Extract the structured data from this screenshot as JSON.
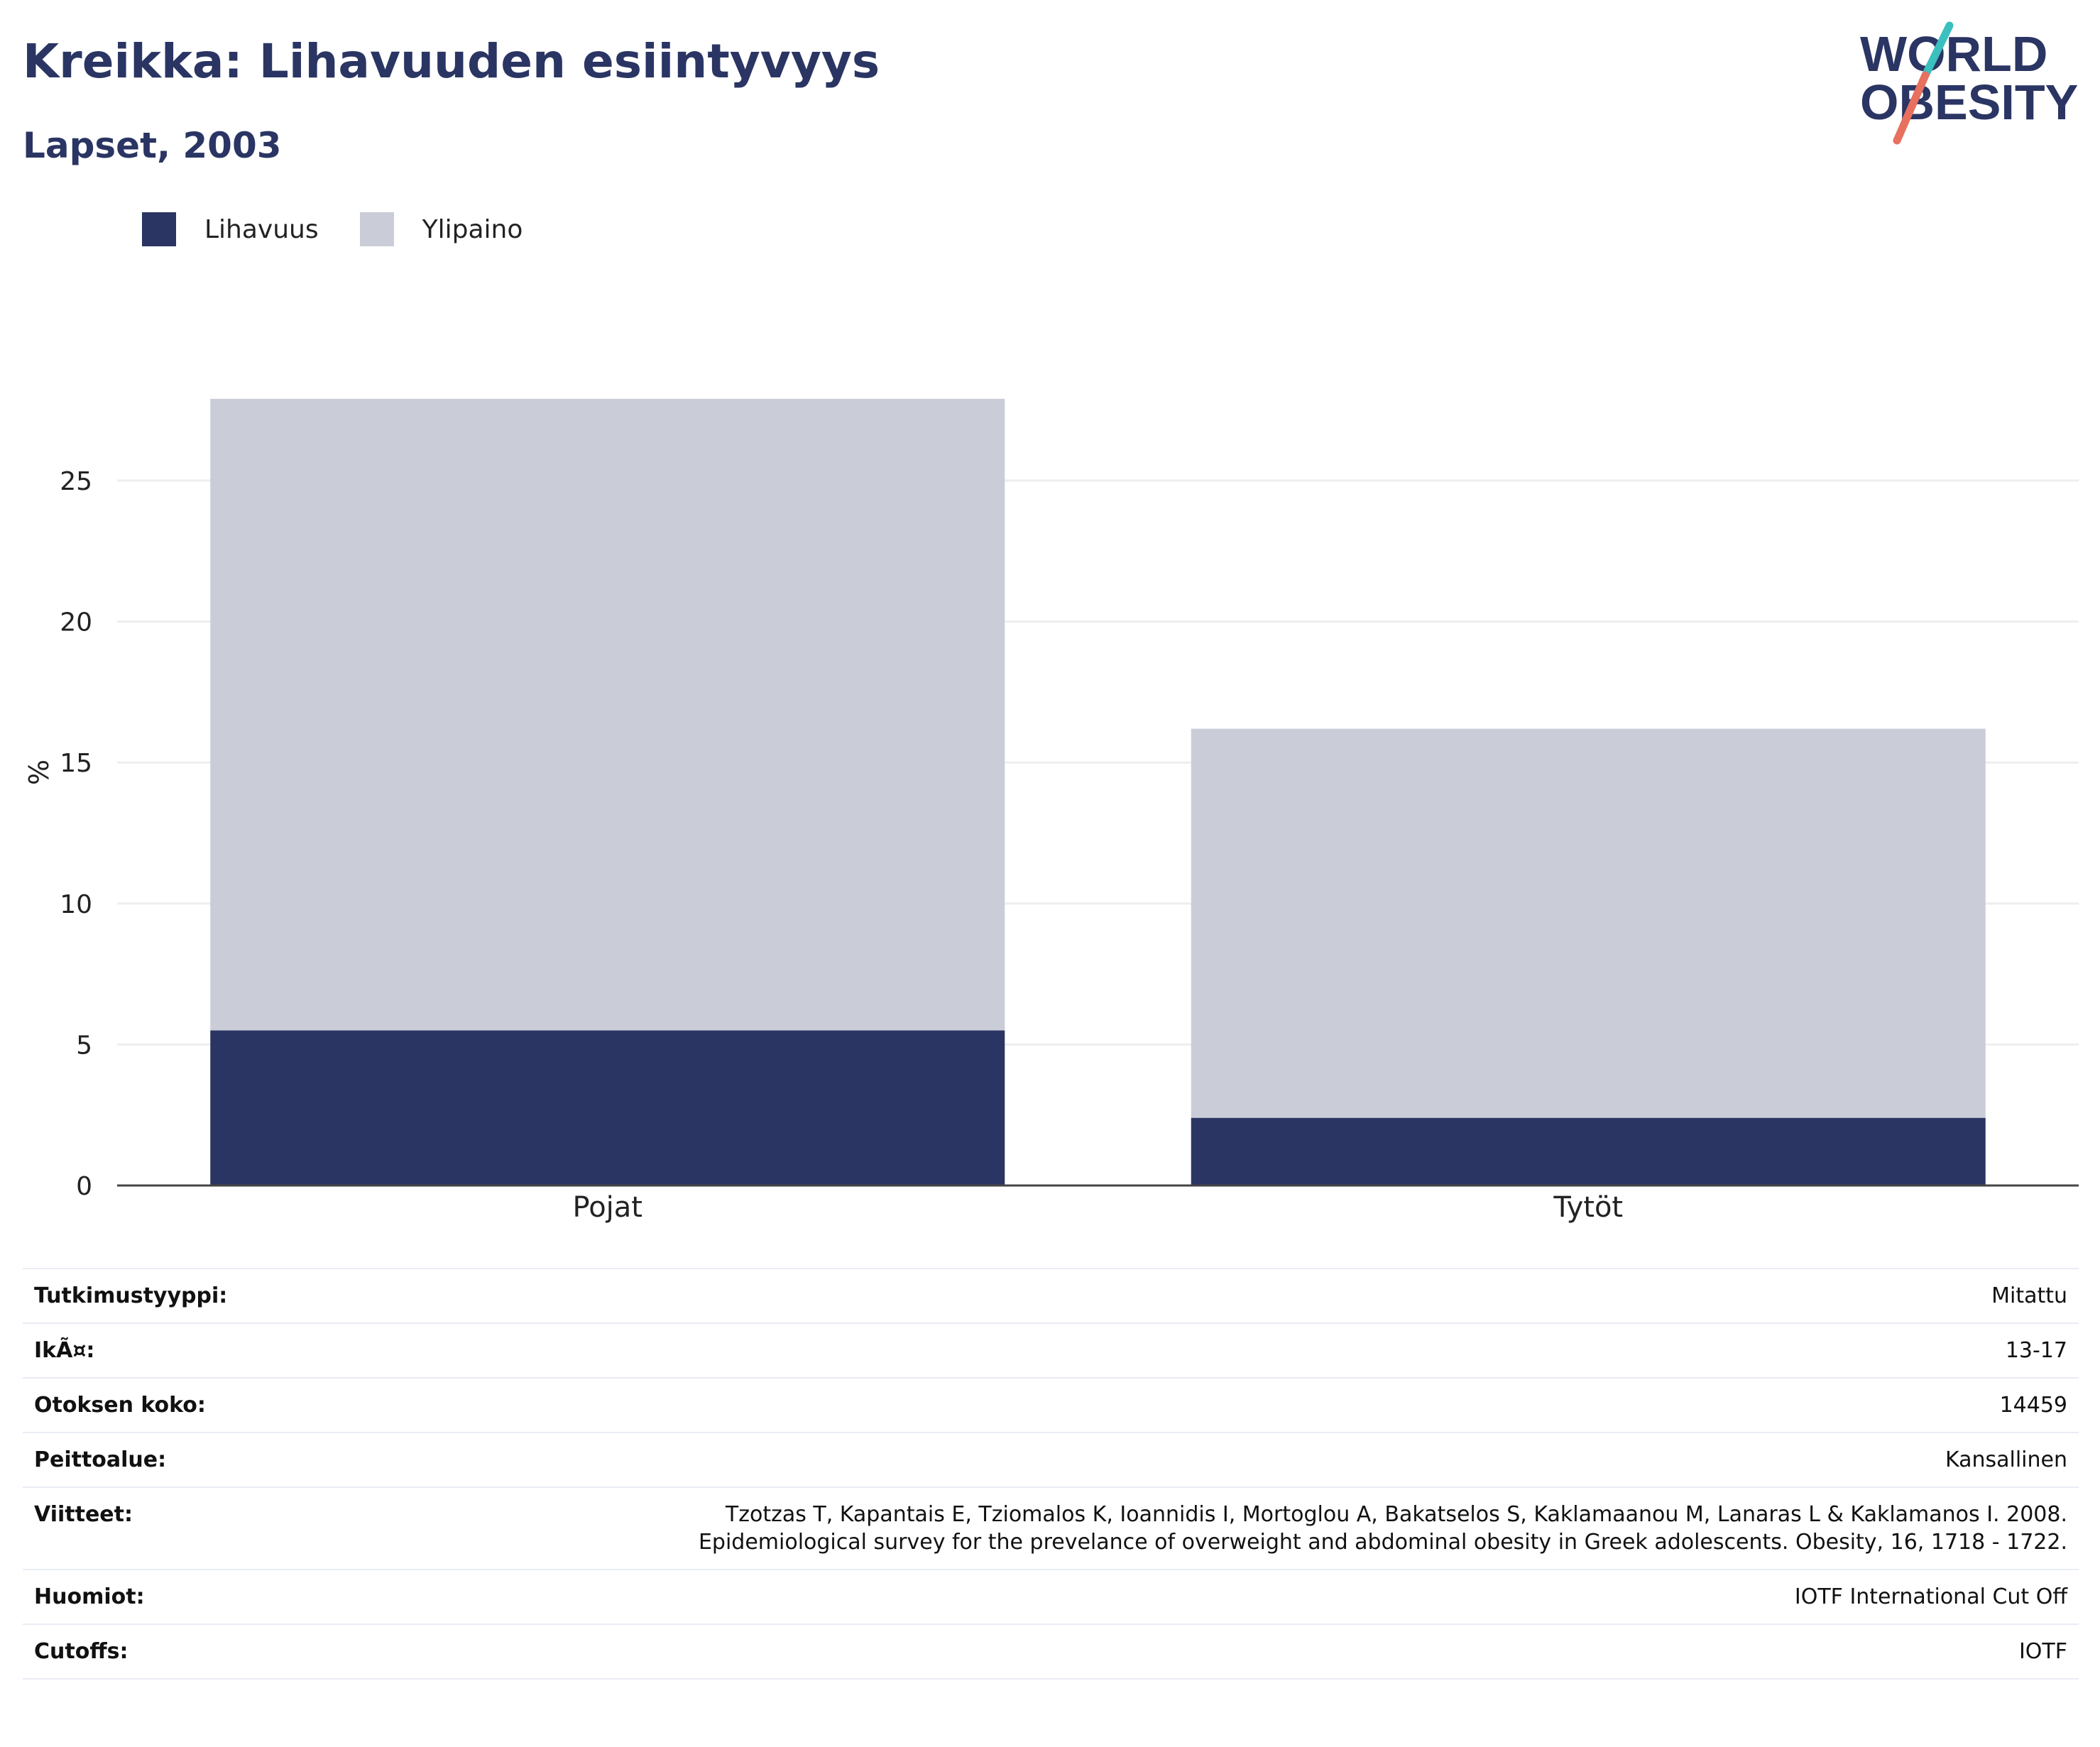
{
  "header": {
    "title": "Kreikka: Lihavuuden esiintyvyys",
    "subtitle": "Lapset, 2003"
  },
  "logo": {
    "line1": "WORLD",
    "line2": "OBESITY",
    "colors": {
      "text": "#2a3563",
      "slash_top": "#3bbfbf",
      "slash_bottom": "#e8705e"
    }
  },
  "colors": {
    "obesity": "#2a3563",
    "overweight": "#cacdd8",
    "grid": "#eeeeee",
    "axis": "#444444"
  },
  "chart_data": {
    "type": "bar",
    "stacked": true,
    "categories": [
      "Pojat",
      "Tytöt"
    ],
    "series": [
      {
        "name": "Lihavuus",
        "values": [
          5.5,
          2.4
        ]
      },
      {
        "name": "Ylipaino",
        "values": [
          22.4,
          13.8
        ]
      }
    ],
    "ylabel": "%",
    "xlabel": "",
    "ylim": [
      0,
      28
    ],
    "yticks": [
      0,
      5,
      10,
      15,
      20,
      25
    ],
    "grid": true,
    "legend_position": "top-left"
  },
  "info": [
    {
      "key": "Tutkimustyyppi:",
      "value": [
        "Mitattu"
      ]
    },
    {
      "key": "IkÃ¤:",
      "value": [
        "13-17"
      ]
    },
    {
      "key": "Otoksen koko:",
      "value": [
        "14459"
      ]
    },
    {
      "key": "Peittoalue:",
      "value": [
        "Kansallinen"
      ]
    },
    {
      "key": "Viitteet:",
      "value": [
        "Tzotzas T, Kapantais E, Tziomalos K, Ioannidis I, Mortoglou A, Bakatselos S, Kaklamaanou M, Lanaras L & Kaklamanos I. 2008.",
        "Epidemiological survey for the prevelance of overweight and abdominal obesity in Greek adolescents. Obesity, 16, 1718 - 1722."
      ]
    },
    {
      "key": "Huomiot:",
      "value": [
        "IOTF International Cut Off"
      ]
    },
    {
      "key": "Cutoffs:",
      "value": [
        "IOTF"
      ]
    }
  ]
}
